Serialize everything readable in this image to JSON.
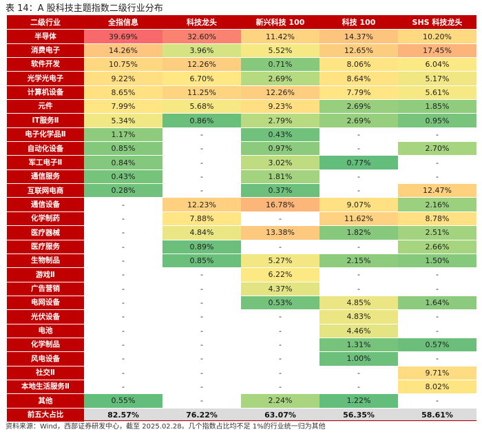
{
  "title": "表 14：A 股科技主题指数二级行业分布",
  "headers": [
    "二级行业",
    "全指信息",
    "科技龙头",
    "新兴科技 100",
    "科技 100",
    "SHS 科技龙头"
  ],
  "rows": [
    {
      "label": "半导体",
      "cells": [
        {
          "text": "39.69%",
          "color": "#f8696b"
        },
        {
          "text": "32.60%",
          "color": "#f98370"
        },
        {
          "text": "11.42%",
          "color": "#fed481"
        },
        {
          "text": "14.37%",
          "color": "#fdc47d"
        },
        {
          "text": "10.20%",
          "color": "#fed980"
        }
      ]
    },
    {
      "label": "消费电子",
      "cells": [
        {
          "text": "14.26%",
          "color": "#fdc57d"
        },
        {
          "text": "3.96%",
          "color": "#d6e382"
        },
        {
          "text": "5.52%",
          "color": "#f6e883"
        },
        {
          "text": "12.65%",
          "color": "#fdcd7f"
        },
        {
          "text": "17.45%",
          "color": "#fcb47a"
        }
      ]
    },
    {
      "label": "软件开发",
      "cells": [
        {
          "text": "10.75%",
          "color": "#fed781"
        },
        {
          "text": "12.26%",
          "color": "#fece80"
        },
        {
          "text": "0.71%",
          "color": "#86c97c"
        },
        {
          "text": "8.06%",
          "color": "#ffe483"
        },
        {
          "text": "6.04%",
          "color": "#fbe983"
        }
      ]
    },
    {
      "label": "光学光电子",
      "cells": [
        {
          "text": "9.22%",
          "color": "#ffdf82"
        },
        {
          "text": "6.70%",
          "color": "#ffe783"
        },
        {
          "text": "2.69%",
          "color": "#b6da80"
        },
        {
          "text": "8.64%",
          "color": "#ffe282"
        },
        {
          "text": "5.17%",
          "color": "#f0e783"
        }
      ]
    },
    {
      "label": "计算机设备",
      "cells": [
        {
          "text": "8.65%",
          "color": "#ffe182"
        },
        {
          "text": "11.25%",
          "color": "#fed480"
        },
        {
          "text": "12.26%",
          "color": "#fece80"
        },
        {
          "text": "7.79%",
          "color": "#ffe583"
        },
        {
          "text": "5.61%",
          "color": "#f6e883"
        }
      ]
    },
    {
      "label": "元件",
      "cells": [
        {
          "text": "7.99%",
          "color": "#ffe583"
        },
        {
          "text": "5.68%",
          "color": "#f6e883"
        },
        {
          "text": "9.23%",
          "color": "#ffdf82"
        },
        {
          "text": "2.69%",
          "color": "#98cf7e"
        },
        {
          "text": "1.85%",
          "color": "#8fcc7d"
        }
      ]
    },
    {
      "label": "IT服务Ⅱ",
      "cells": [
        {
          "text": "5.34%",
          "color": "#f1e783"
        },
        {
          "text": "0.86%",
          "color": "#6abf7b"
        },
        {
          "text": "2.79%",
          "color": "#b8da80"
        },
        {
          "text": "2.69%",
          "color": "#98cf7e"
        },
        {
          "text": "0.95%",
          "color": "#79c47c"
        }
      ]
    },
    {
      "label": "电子化学品Ⅱ",
      "cells": [
        {
          "text": "1.17%",
          "color": "#8ecb7d"
        },
        {
          "text": "-",
          "color": "#ffffff"
        },
        {
          "text": "0.43%",
          "color": "#6fc17b"
        },
        {
          "text": "-",
          "color": "#ffffff"
        },
        {
          "text": "-",
          "color": "#ffffff"
        }
      ]
    },
    {
      "label": "自动化设备",
      "cells": [
        {
          "text": "0.85%",
          "color": "#84c87c"
        },
        {
          "text": "-",
          "color": "#ffffff"
        },
        {
          "text": "0.97%",
          "color": "#8cca7d"
        },
        {
          "text": "-",
          "color": "#ffffff"
        },
        {
          "text": "2.70%",
          "color": "#a7d47f"
        }
      ]
    },
    {
      "label": "军工电子Ⅱ",
      "cells": [
        {
          "text": "0.84%",
          "color": "#83c87c"
        },
        {
          "text": "-",
          "color": "#ffffff"
        },
        {
          "text": "3.02%",
          "color": "#bfdc81"
        },
        {
          "text": "0.77%",
          "color": "#63be7b"
        },
        {
          "text": "-",
          "color": "#ffffff"
        }
      ]
    },
    {
      "label": "通信服务",
      "cells": [
        {
          "text": "0.43%",
          "color": "#76c37c"
        },
        {
          "text": "-",
          "color": "#ffffff"
        },
        {
          "text": "1.81%",
          "color": "#a3d37f"
        },
        {
          "text": "-",
          "color": "#ffffff"
        },
        {
          "text": "-",
          "color": "#ffffff"
        }
      ]
    },
    {
      "label": "互联网电商",
      "cells": [
        {
          "text": "0.28%",
          "color": "#6fc17b"
        },
        {
          "text": "-",
          "color": "#ffffff"
        },
        {
          "text": "0.37%",
          "color": "#6cc07b"
        },
        {
          "text": "-",
          "color": "#ffffff"
        },
        {
          "text": "12.47%",
          "color": "#fed17f"
        }
      ]
    },
    {
      "label": "通信设备",
      "cells": [
        {
          "text": "-",
          "color": "#ffffff"
        },
        {
          "text": "12.23%",
          "color": "#fed080"
        },
        {
          "text": "16.78%",
          "color": "#fcb67a"
        },
        {
          "text": "9.07%",
          "color": "#ffe082"
        },
        {
          "text": "2.16%",
          "color": "#9bd07e"
        }
      ]
    },
    {
      "label": "化学制药",
      "cells": [
        {
          "text": "-",
          "color": "#ffffff"
        },
        {
          "text": "7.88%",
          "color": "#ffe583"
        },
        {
          "text": "-",
          "color": "#ffffff"
        },
        {
          "text": "11.62%",
          "color": "#fed281"
        },
        {
          "text": "8.78%",
          "color": "#ffe082"
        }
      ]
    },
    {
      "label": "医疗器械",
      "cells": [
        {
          "text": "-",
          "color": "#ffffff"
        },
        {
          "text": "4.84%",
          "color": "#e9e683"
        },
        {
          "text": "13.38%",
          "color": "#fdc97e"
        },
        {
          "text": "1.82%",
          "color": "#86c97c"
        },
        {
          "text": "2.51%",
          "color": "#a3d37f"
        }
      ]
    },
    {
      "label": "医疗服务",
      "cells": [
        {
          "text": "-",
          "color": "#ffffff"
        },
        {
          "text": "0.89%",
          "color": "#6bbf7b"
        },
        {
          "text": "-",
          "color": "#ffffff"
        },
        {
          "text": "-",
          "color": "#ffffff"
        },
        {
          "text": "2.66%",
          "color": "#a6d47f"
        }
      ]
    },
    {
      "label": "生物制品",
      "cells": [
        {
          "text": "-",
          "color": "#ffffff"
        },
        {
          "text": "0.85%",
          "color": "#6abf7b"
        },
        {
          "text": "5.27%",
          "color": "#f3e783"
        },
        {
          "text": "2.15%",
          "color": "#8dcb7d"
        },
        {
          "text": "1.50%",
          "color": "#86c97c"
        }
      ]
    },
    {
      "label": "游戏Ⅱ",
      "cells": [
        {
          "text": "-",
          "color": "#ffffff"
        },
        {
          "text": "-",
          "color": "#ffffff"
        },
        {
          "text": "6.22%",
          "color": "#fde983"
        },
        {
          "text": "-",
          "color": "#ffffff"
        },
        {
          "text": "-",
          "color": "#ffffff"
        }
      ]
    },
    {
      "label": "广告营销",
      "cells": [
        {
          "text": "-",
          "color": "#ffffff"
        },
        {
          "text": "-",
          "color": "#ffffff"
        },
        {
          "text": "4.37%",
          "color": "#e2e482"
        },
        {
          "text": "-",
          "color": "#ffffff"
        },
        {
          "text": "-",
          "color": "#ffffff"
        }
      ]
    },
    {
      "label": "电网设备",
      "cells": [
        {
          "text": "-",
          "color": "#ffffff"
        },
        {
          "text": "-",
          "color": "#ffffff"
        },
        {
          "text": "0.53%",
          "color": "#74c27c"
        },
        {
          "text": "4.85%",
          "color": "#ebe683"
        },
        {
          "text": "1.64%",
          "color": "#8ccb7d"
        }
      ]
    },
    {
      "label": "光伏设备",
      "cells": [
        {
          "text": "-",
          "color": "#ffffff"
        },
        {
          "text": "-",
          "color": "#ffffff"
        },
        {
          "text": "-",
          "color": "#ffffff"
        },
        {
          "text": "4.83%",
          "color": "#ebe683"
        },
        {
          "text": "-",
          "color": "#ffffff"
        }
      ]
    },
    {
      "label": "电池",
      "cells": [
        {
          "text": "-",
          "color": "#ffffff"
        },
        {
          "text": "-",
          "color": "#ffffff"
        },
        {
          "text": "-",
          "color": "#ffffff"
        },
        {
          "text": "4.46%",
          "color": "#e4e582"
        },
        {
          "text": "-",
          "color": "#ffffff"
        }
      ]
    },
    {
      "label": "化学制品",
      "cells": [
        {
          "text": "-",
          "color": "#ffffff"
        },
        {
          "text": "-",
          "color": "#ffffff"
        },
        {
          "text": "-",
          "color": "#ffffff"
        },
        {
          "text": "1.31%",
          "color": "#76c37c"
        },
        {
          "text": "0.57%",
          "color": "#6bbf7b"
        }
      ]
    },
    {
      "label": "风电设备",
      "cells": [
        {
          "text": "-",
          "color": "#ffffff"
        },
        {
          "text": "-",
          "color": "#ffffff"
        },
        {
          "text": "-",
          "color": "#ffffff"
        },
        {
          "text": "1.00%",
          "color": "#6cc07b"
        },
        {
          "text": "-",
          "color": "#ffffff"
        }
      ]
    },
    {
      "label": "社交Ⅱ",
      "cells": [
        {
          "text": "-",
          "color": "#ffffff"
        },
        {
          "text": "-",
          "color": "#ffffff"
        },
        {
          "text": "-",
          "color": "#ffffff"
        },
        {
          "text": "-",
          "color": "#ffffff"
        },
        {
          "text": "9.71%",
          "color": "#ffdc81"
        }
      ]
    },
    {
      "label": "本地生活服务Ⅱ",
      "cells": [
        {
          "text": "-",
          "color": "#ffffff"
        },
        {
          "text": "-",
          "color": "#ffffff"
        },
        {
          "text": "-",
          "color": "#ffffff"
        },
        {
          "text": "-",
          "color": "#ffffff"
        },
        {
          "text": "8.02%",
          "color": "#ffe482"
        }
      ]
    },
    {
      "label": "其他",
      "cells": [
        {
          "text": "0.55%",
          "color": "#63be7b"
        },
        {
          "text": "-",
          "color": "#ffffff"
        },
        {
          "text": "2.24%",
          "color": "#a9d580"
        },
        {
          "text": "1.22%",
          "color": "#63be7b"
        },
        {
          "text": "-",
          "color": "#ffffff"
        }
      ]
    }
  ],
  "total": {
    "label": "前五大占比",
    "values": [
      "82.57%",
      "76.22%",
      "63.07%",
      "56.35%",
      "58.61%"
    ]
  },
  "source": "资料来源：Wind，西部证券研发中心，截至 2025.02.28。几个指数占比均不足 1%的行业统一归为其他"
}
